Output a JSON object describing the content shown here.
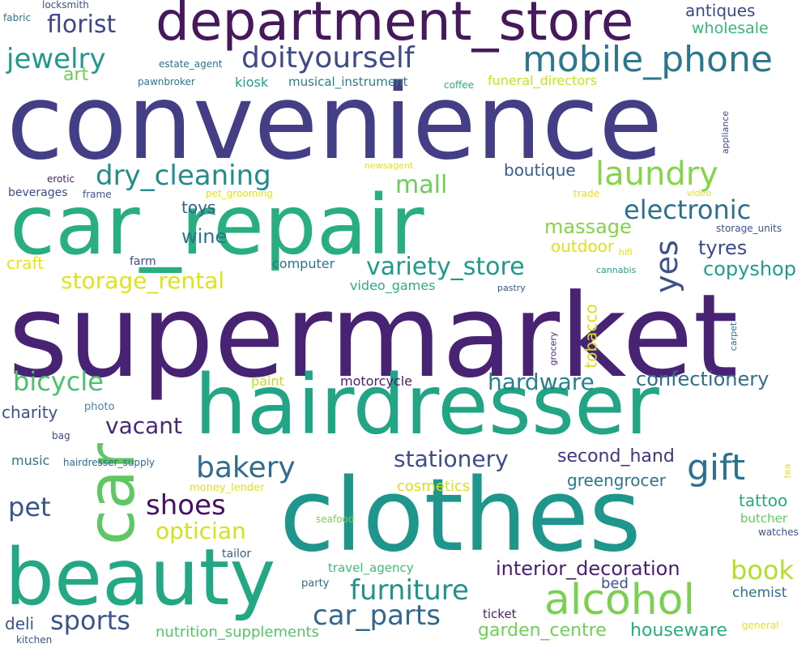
{
  "words": [
    {
      "text": "convenience",
      "color": "#433e85"
    },
    {
      "text": "supermarket",
      "color": "#482374"
    },
    {
      "text": "car_repair",
      "color": "#28ae80"
    },
    {
      "text": "department_store",
      "color": "#46185d"
    },
    {
      "text": "hairdresser",
      "color": "#21a585"
    },
    {
      "text": "clothes",
      "color": "#1f968b"
    },
    {
      "text": "beauty",
      "color": "#22a884"
    },
    {
      "text": "car",
      "color": "#5ec962"
    },
    {
      "text": "mobile_phone",
      "color": "#2a788e"
    },
    {
      "text": "alcohol",
      "color": "#7ad151"
    },
    {
      "text": "doityourself",
      "color": "#3e4a89"
    },
    {
      "text": "gift",
      "color": "#2c728e"
    },
    {
      "text": "laundry",
      "color": "#86d549"
    },
    {
      "text": "dry_cleaning",
      "color": "#238a8d"
    },
    {
      "text": "yes",
      "color": "#3b528b"
    },
    {
      "text": "bakery",
      "color": "#2f6c8e"
    },
    {
      "text": "furniture",
      "color": "#20938c"
    },
    {
      "text": "jewelry",
      "color": "#1f9a8a"
    },
    {
      "text": "florist",
      "color": "#3f4788"
    },
    {
      "text": "car_parts",
      "color": "#31688e"
    },
    {
      "text": "variety_store",
      "color": "#1e9b8a"
    },
    {
      "text": "electronic",
      "color": "#2d708e"
    },
    {
      "text": "bicycle",
      "color": "#4ac16d"
    },
    {
      "text": "shoes",
      "color": "#471063"
    },
    {
      "text": "sports",
      "color": "#3a548c"
    },
    {
      "text": "pet",
      "color": "#39558c"
    },
    {
      "text": "book",
      "color": "#b5de2b"
    },
    {
      "text": "mall",
      "color": "#6ccd5a"
    },
    {
      "text": "hardware",
      "color": "#27808e"
    },
    {
      "text": "storage_rental",
      "color": "#dfe318"
    },
    {
      "text": "optician",
      "color": "#d2e21b"
    },
    {
      "text": "stationery",
      "color": "#3d4d8a"
    },
    {
      "text": "confectionery",
      "color": "#2d718e"
    },
    {
      "text": "vacant",
      "color": "#482878"
    },
    {
      "text": "interior_decoration",
      "color": "#481f70"
    },
    {
      "text": "massage",
      "color": "#84d44b"
    },
    {
      "text": "copyshop",
      "color": "#1f9e89"
    },
    {
      "text": "tyres",
      "color": "#3e4a89"
    },
    {
      "text": "wine",
      "color": "#2a768e"
    },
    {
      "text": "garden_centre",
      "color": "#70cf57"
    },
    {
      "text": "houseware",
      "color": "#29af7f"
    },
    {
      "text": "greengrocer",
      "color": "#2a768e"
    },
    {
      "text": "second_hand",
      "color": "#45337d"
    },
    {
      "text": "boutique",
      "color": "#355f8d"
    },
    {
      "text": "antiques",
      "color": "#3e4989"
    },
    {
      "text": "wholesale",
      "color": "#37b878"
    },
    {
      "text": "art",
      "color": "#6ccd5a"
    },
    {
      "text": "tobacco",
      "color": "#d8e219"
    },
    {
      "text": "outdoor",
      "color": "#dde318"
    },
    {
      "text": "tattoo",
      "color": "#25ac82"
    },
    {
      "text": "toys",
      "color": "#33638d"
    },
    {
      "text": "craft",
      "color": "#e5e419"
    },
    {
      "text": "cosmetics",
      "color": "#d5e21a"
    },
    {
      "text": "bed",
      "color": "#3b528b"
    },
    {
      "text": "deli",
      "color": "#3b528b"
    },
    {
      "text": "chemist",
      "color": "#2c728e"
    },
    {
      "text": "nutrition_supplements",
      "color": "#54c568"
    },
    {
      "text": "charity",
      "color": "#3b528b"
    },
    {
      "text": "motorcycle",
      "color": "#481f70"
    },
    {
      "text": "paint",
      "color": "#c2df23"
    },
    {
      "text": "computer",
      "color": "#2c728e"
    },
    {
      "text": "video_games",
      "color": "#29af7f"
    },
    {
      "text": "kiosk",
      "color": "#1fa088"
    },
    {
      "text": "musical_instrument",
      "color": "#287d8e"
    },
    {
      "text": "funeral_directors",
      "color": "#c8e020"
    },
    {
      "text": "music",
      "color": "#2a768e"
    },
    {
      "text": "butcher",
      "color": "#63cb5f"
    },
    {
      "text": "ticket",
      "color": "#482374"
    },
    {
      "text": "party",
      "color": "#2c728e"
    },
    {
      "text": "travel_agency",
      "color": "#3dbc74"
    },
    {
      "text": "tailor",
      "color": "#33638d"
    },
    {
      "text": "farm",
      "color": "#3e4a89"
    },
    {
      "text": "beverages",
      "color": "#3e4989"
    },
    {
      "text": "photo",
      "color": "#4c7fb0"
    },
    {
      "text": "watches",
      "color": "#3b528b"
    },
    {
      "text": "money_lender",
      "color": "#dde318"
    },
    {
      "text": "hairdresser_supply",
      "color": "#31688e"
    },
    {
      "text": "kitchen",
      "color": "#3b528b"
    },
    {
      "text": "general",
      "color": "#e2e418"
    },
    {
      "text": "seafood",
      "color": "#75d054"
    },
    {
      "text": "bag",
      "color": "#3f4788"
    },
    {
      "text": "frame",
      "color": "#3b528b"
    },
    {
      "text": "erotic",
      "color": "#481f70"
    },
    {
      "text": "fabric",
      "color": "#2c728e"
    },
    {
      "text": "locksmith",
      "color": "#3b528b"
    },
    {
      "text": "estate_agent",
      "color": "#2c728e"
    },
    {
      "text": "pawnbroker",
      "color": "#2a788e"
    },
    {
      "text": "coffee",
      "color": "#29af7f"
    },
    {
      "text": "newsagent",
      "color": "#e5e419"
    },
    {
      "text": "pet_grooming",
      "color": "#dde318"
    },
    {
      "text": "trade",
      "color": "#e2e418"
    },
    {
      "text": "video",
      "color": "#dde318"
    },
    {
      "text": "appliance",
      "color": "#3e4989"
    },
    {
      "text": "storage_units",
      "color": "#3b528b"
    },
    {
      "text": "hifi",
      "color": "#e2e418"
    },
    {
      "text": "cannabis",
      "color": "#2a9d8a"
    },
    {
      "text": "pastry",
      "color": "#3b528b"
    },
    {
      "text": "grocery",
      "color": "#482878"
    },
    {
      "text": "carpet",
      "color": "#2c728e"
    },
    {
      "text": "tea",
      "color": "#dde318"
    }
  ]
}
